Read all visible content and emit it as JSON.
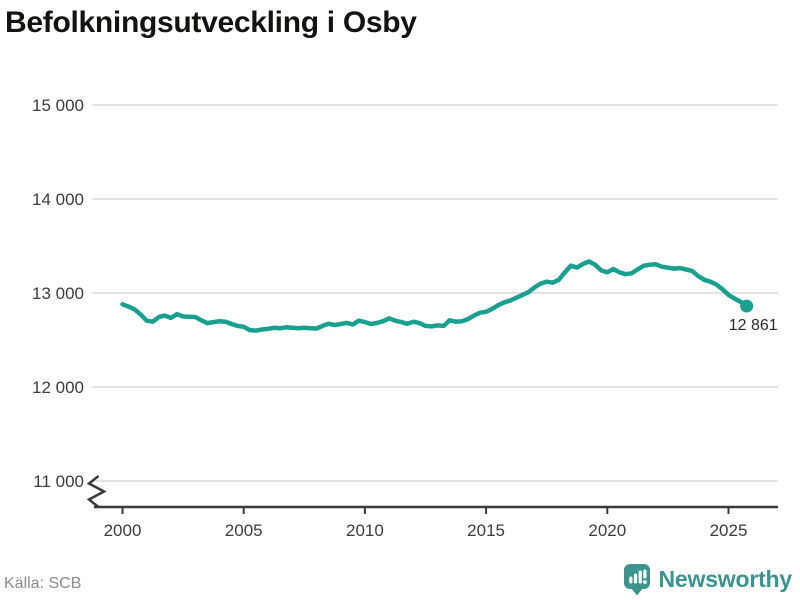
{
  "title": "Befolkningsutveckling i Osby",
  "source": "Källa: SCB",
  "branding": {
    "logo_text": "Newsworthy",
    "logo_icon": "speech-bubble-with-bar-chart-and-exclamation"
  },
  "colors": {
    "line": "#1aa08f",
    "logo": "#3d948e",
    "grid": "#e4e4e4",
    "axis": "#3a3a3a",
    "tick_text": "#3c3c3c",
    "title_text": "#131310",
    "source_text": "#8b8b8b",
    "end_label_text": "#2b2b2b",
    "background": "#ffffff"
  },
  "chart_data": {
    "type": "line",
    "title": "Befolkningsutveckling i Osby",
    "series_name": "Befolkning i Osby",
    "xlabel": "",
    "ylabel": "",
    "grid": "horizontal",
    "legend": "none",
    "ylim": [
      11000,
      15000
    ],
    "axis_break_at_bottom": true,
    "x_ticks": [
      2000,
      2005,
      2010,
      2015,
      2020,
      2025
    ],
    "y_ticks": [
      15000,
      14000,
      13000,
      12000,
      11000
    ],
    "y_tick_labels": [
      "15 000",
      "14 000",
      "13 000",
      "12 000",
      "11 000"
    ],
    "last_value": 12861,
    "last_value_label": "12 861",
    "x": [
      2000,
      2000.25,
      2000.5,
      2000.75,
      2001,
      2001.25,
      2001.5,
      2001.75,
      2002,
      2002.25,
      2002.5,
      2002.75,
      2003,
      2003.25,
      2003.5,
      2003.75,
      2004,
      2004.25,
      2004.5,
      2004.75,
      2005,
      2005.25,
      2005.5,
      2005.75,
      2006,
      2006.25,
      2006.5,
      2006.75,
      2007,
      2007.25,
      2007.5,
      2007.75,
      2008,
      2008.25,
      2008.5,
      2008.75,
      2009,
      2009.25,
      2009.5,
      2009.75,
      2010,
      2010.25,
      2010.5,
      2010.75,
      2011,
      2011.25,
      2011.5,
      2011.75,
      2012,
      2012.25,
      2012.5,
      2012.75,
      2013,
      2013.25,
      2013.5,
      2013.75,
      2014,
      2014.25,
      2014.5,
      2014.75,
      2015,
      2015.25,
      2015.5,
      2015.75,
      2016,
      2016.25,
      2016.5,
      2016.75,
      2017,
      2017.25,
      2017.5,
      2017.75,
      2018,
      2018.25,
      2018.5,
      2018.75,
      2019,
      2019.25,
      2019.5,
      2019.75,
      2020,
      2020.25,
      2020.5,
      2020.75,
      2021,
      2021.25,
      2021.5,
      2021.75,
      2022,
      2022.25,
      2022.5,
      2022.75,
      2023,
      2023.25,
      2023.5,
      2023.75,
      2024,
      2024.25,
      2024.5,
      2024.75,
      2025,
      2025.25,
      2025.5,
      2025.75
    ],
    "values": [
      12880,
      12855,
      12825,
      12770,
      12705,
      12695,
      12745,
      12760,
      12735,
      12775,
      12750,
      12748,
      12745,
      12710,
      12680,
      12690,
      12700,
      12695,
      12670,
      12650,
      12640,
      12605,
      12600,
      12612,
      12618,
      12630,
      12625,
      12635,
      12630,
      12624,
      12630,
      12626,
      12622,
      12650,
      12672,
      12660,
      12670,
      12682,
      12665,
      12705,
      12690,
      12670,
      12682,
      12700,
      12730,
      12705,
      12690,
      12672,
      12695,
      12680,
      12650,
      12645,
      12655,
      12650,
      12710,
      12695,
      12700,
      12722,
      12760,
      12790,
      12800,
      12832,
      12870,
      12900,
      12920,
      12950,
      12980,
      13010,
      13060,
      13100,
      13120,
      13110,
      13140,
      13220,
      13290,
      13270,
      13310,
      13335,
      13300,
      13240,
      13220,
      13255,
      13220,
      13200,
      13210,
      13250,
      13290,
      13300,
      13305,
      13280,
      13270,
      13260,
      13265,
      13250,
      13235,
      13180,
      13140,
      13120,
      13090,
      13040,
      12980,
      12940,
      12905,
      12861
    ]
  }
}
